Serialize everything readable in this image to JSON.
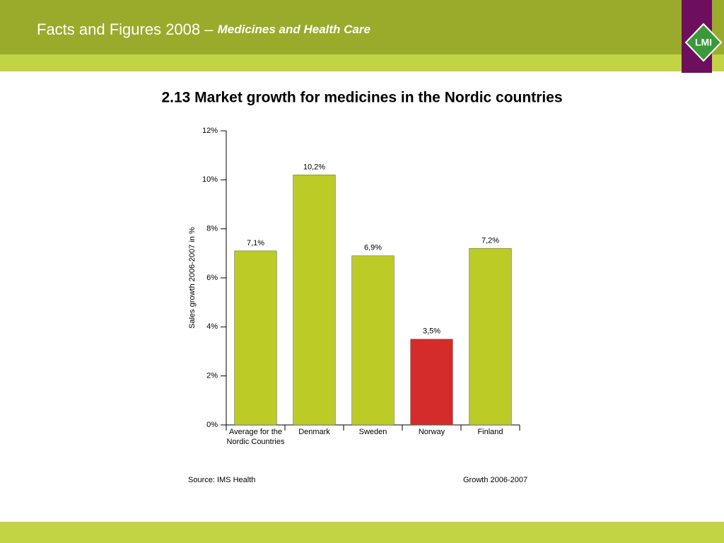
{
  "header": {
    "title": "Facts and Figures 2008 –",
    "subtitle": "Medicines and Health Care",
    "logo": "LMI"
  },
  "chart_data": {
    "type": "bar",
    "title": "2.13 Market growth for medicines in the Nordic countries",
    "y_label": "Sales growth 2006-2007 in %",
    "categories": [
      "Average for the Nordic Countries",
      "Denmark",
      "Sweden",
      "Norway",
      "Finland"
    ],
    "values": [
      7.1,
      10.2,
      6.9,
      3.5,
      7.2
    ],
    "value_labels": [
      "7,1%",
      "10,2%",
      "6,9%",
      "3,5%",
      "7,2%"
    ],
    "colors": [
      "#bccb26",
      "#bccb26",
      "#bccb26",
      "#d42b2b",
      "#bccb26"
    ],
    "ylim": [
      0,
      12
    ],
    "yticks": [
      {
        "value": 0,
        "label": "0%"
      },
      {
        "value": 2,
        "label": "2%"
      },
      {
        "value": 4,
        "label": "4%"
      },
      {
        "value": 6,
        "label": "6%"
      },
      {
        "value": 8,
        "label": "8%"
      },
      {
        "value": 10,
        "label": "10%"
      },
      {
        "value": 12,
        "label": "12%"
      }
    ],
    "source": "Source: IMS Health",
    "note": "Growth 2006-2007"
  }
}
